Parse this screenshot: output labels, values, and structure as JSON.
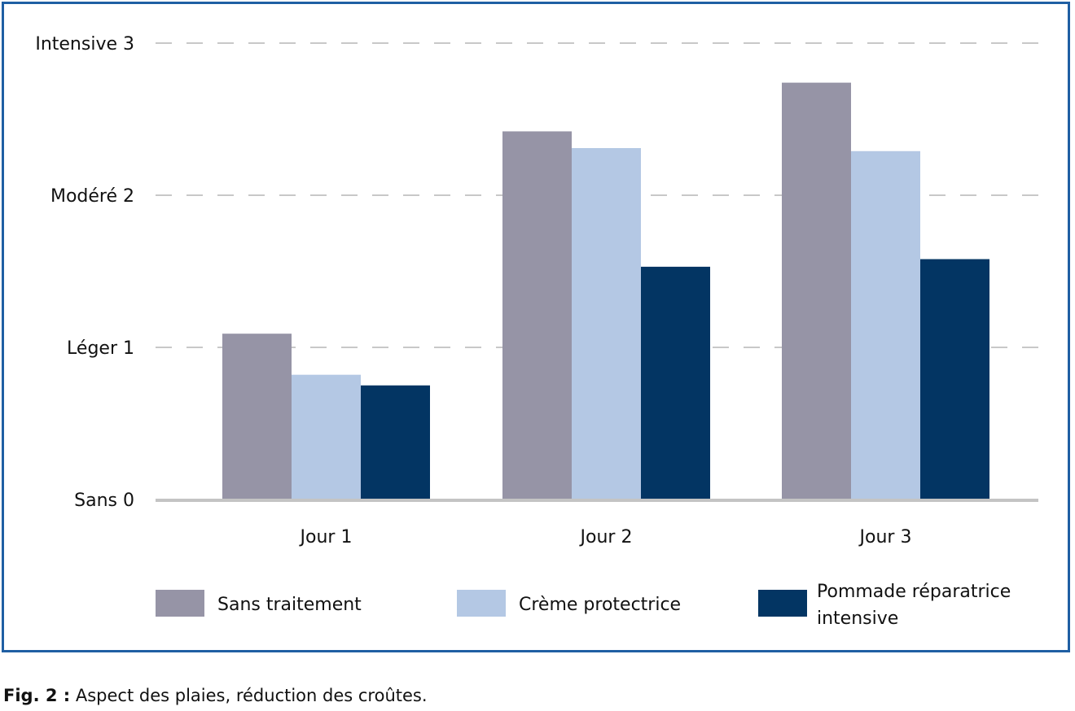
{
  "chart_data": {
    "type": "bar",
    "categories": [
      "Jour 1",
      "Jour 2",
      "Jour 3"
    ],
    "series": [
      {
        "name": "Sans traitement",
        "color": "#9694a6",
        "values": [
          1.09,
          2.42,
          2.74
        ]
      },
      {
        "name": "Crème protectrice",
        "color": "#b4c8e4",
        "values": [
          0.82,
          2.31,
          2.29
        ]
      },
      {
        "name": "Pommade réparatrice intensive",
        "color": "#033563",
        "values": [
          0.75,
          1.53,
          1.58
        ]
      }
    ],
    "yticks": [
      {
        "value": 0,
        "label": "Sans 0"
      },
      {
        "value": 1,
        "label": "Léger 1"
      },
      {
        "value": 2,
        "label": "Modéré 2"
      },
      {
        "value": 3,
        "label": "Intensive 3"
      }
    ],
    "ylim": [
      0,
      3.2
    ],
    "grid": "dashed horizontal",
    "legend_position": "bottom",
    "xlabel": "",
    "ylabel": ""
  },
  "caption": {
    "label": "Fig. 2 :",
    "text": "Aspect des plaies, réduction des croûtes."
  }
}
